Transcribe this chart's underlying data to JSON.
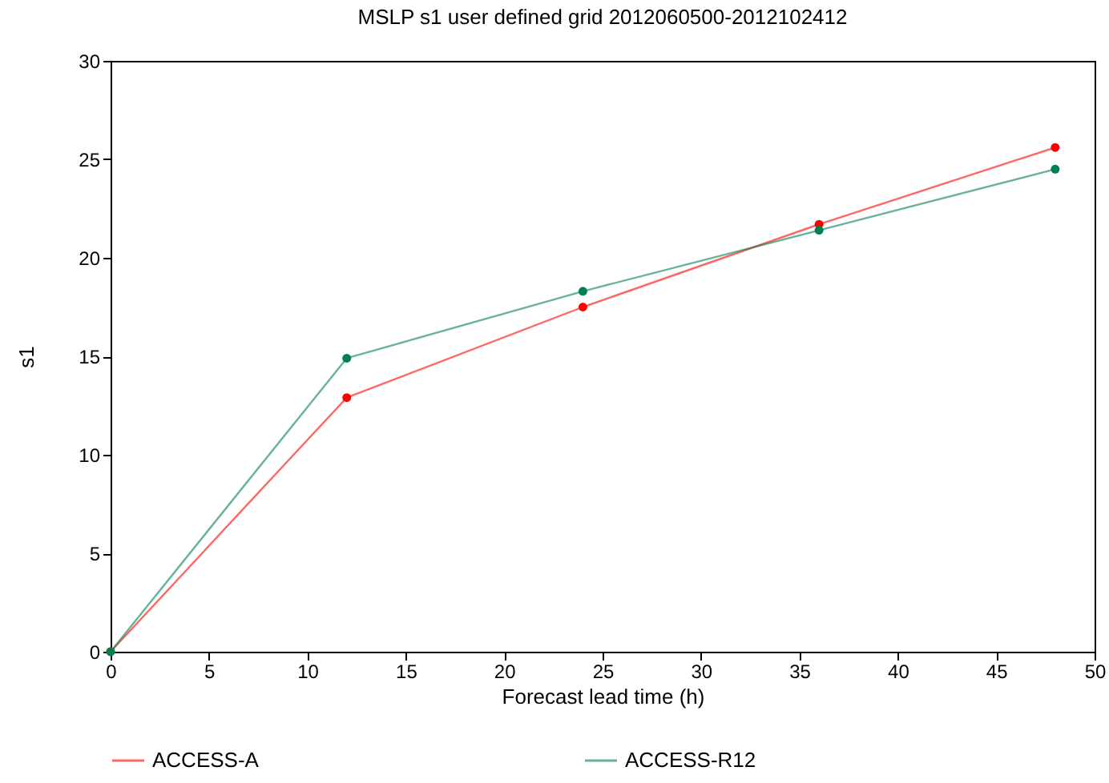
{
  "chart_data": {
    "type": "line",
    "title": "MSLP s1 user defined grid 2012060500-2012102412",
    "xlabel": "Forecast lead time (h)",
    "ylabel": "s1",
    "x": [
      0,
      12,
      24,
      36,
      48
    ],
    "series": [
      {
        "name": "ACCESS-A",
        "color": "#ff0000",
        "values": [
          0,
          12.9,
          17.5,
          21.7,
          25.6
        ]
      },
      {
        "name": "ACCESS-R12",
        "color": "#00804f",
        "values": [
          0,
          14.9,
          18.3,
          21.4,
          24.5
        ]
      }
    ],
    "xlim": [
      0,
      50
    ],
    "xticks": [
      0,
      5,
      10,
      15,
      20,
      25,
      30,
      35,
      40,
      45,
      50
    ],
    "ylim": [
      0,
      30
    ],
    "yticks": [
      0,
      5,
      10,
      15,
      20,
      25,
      30
    ],
    "grid": false,
    "legend": "bottom",
    "marker": "circle",
    "line_style": "solid"
  }
}
